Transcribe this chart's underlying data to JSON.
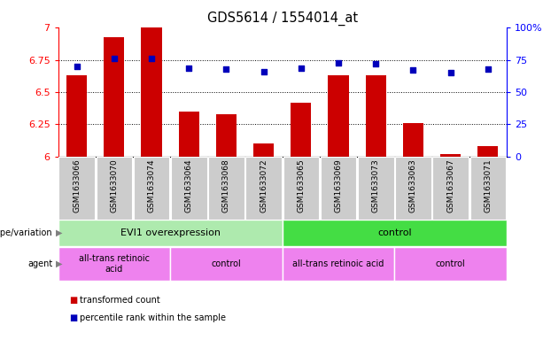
{
  "title": "GDS5614 / 1554014_at",
  "samples": [
    "GSM1633066",
    "GSM1633070",
    "GSM1633074",
    "GSM1633064",
    "GSM1633068",
    "GSM1633072",
    "GSM1633065",
    "GSM1633069",
    "GSM1633073",
    "GSM1633063",
    "GSM1633067",
    "GSM1633071"
  ],
  "red_values": [
    6.63,
    6.93,
    7.0,
    6.35,
    6.33,
    6.1,
    6.42,
    6.63,
    6.63,
    6.26,
    6.02,
    6.08
  ],
  "blue_values": [
    70,
    76,
    76,
    69,
    68,
    66,
    69,
    73,
    72,
    67,
    65,
    68
  ],
  "ylim_left": [
    6.0,
    7.0
  ],
  "ylim_right": [
    0,
    100
  ],
  "yticks_left": [
    6.0,
    6.25,
    6.5,
    6.75,
    7.0
  ],
  "yticks_right": [
    0,
    25,
    50,
    75,
    100
  ],
  "ytick_labels_left": [
    "6",
    "6.25",
    "6.5",
    "6.75",
    "7"
  ],
  "ytick_labels_right": [
    "0",
    "25",
    "50",
    "75",
    "100%"
  ],
  "hlines": [
    6.25,
    6.5,
    6.75
  ],
  "genotype_groups": [
    {
      "label": "EVI1 overexpression",
      "start": 0,
      "end": 6,
      "color": "#AEEAAE"
    },
    {
      "label": "control",
      "start": 6,
      "end": 12,
      "color": "#44DD44"
    }
  ],
  "agent_groups": [
    {
      "label": "all-trans retinoic\nacid",
      "start": 0,
      "end": 3
    },
    {
      "label": "control",
      "start": 3,
      "end": 6
    },
    {
      "label": "all-trans retinoic acid",
      "start": 6,
      "end": 9
    },
    {
      "label": "control",
      "start": 9,
      "end": 12
    }
  ],
  "agent_color": "#EE82EE",
  "bar_color": "#CC0000",
  "dot_color": "#0000BB",
  "bar_baseline": 6.0,
  "sample_box_color": "#CCCCCC",
  "legend_red_color": "#CC0000",
  "legend_blue_color": "#0000BB"
}
